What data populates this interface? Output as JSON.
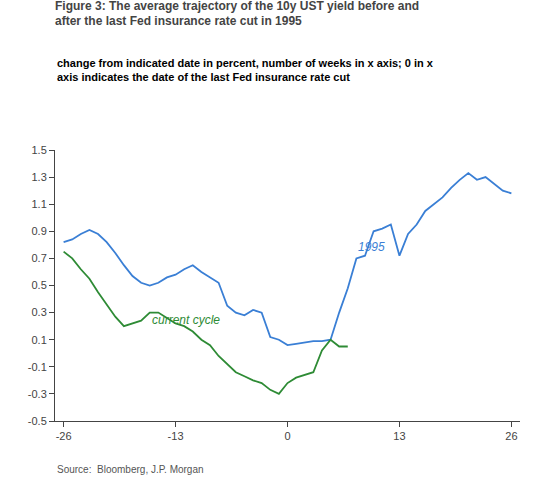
{
  "chart_data": {
    "type": "line",
    "title": "Figure 3: The average trajectory of the 10y UST yield before and\nafter the last Fed insurance rate cut in 1995",
    "subtitle": "change from indicated date in percent, number of weeks in x axis; 0 in x\naxis indicates the date of the last Fed insurance rate cut",
    "source": "Source:  Bloomberg, J.P. Morgan",
    "series": [
      {
        "color": "#3a7fd5",
        "x": [
          -26,
          -25,
          -24,
          -23,
          -22,
          -21,
          -20,
          -19,
          -18,
          -17,
          -16,
          -15,
          -14,
          -13,
          -12,
          -11,
          -10,
          -9,
          -8,
          -7,
          -6,
          -5,
          -4,
          -3,
          -2,
          -1,
          0,
          1,
          2,
          3,
          4,
          5,
          6,
          7,
          8,
          9,
          10,
          11,
          12,
          13,
          14,
          15,
          16,
          17,
          18,
          19,
          20,
          21,
          22,
          23,
          24,
          25,
          26
        ],
        "values": [
          0.82,
          0.84,
          0.88,
          0.91,
          0.88,
          0.82,
          0.74,
          0.65,
          0.57,
          0.52,
          0.5,
          0.52,
          0.56,
          0.58,
          0.62,
          0.65,
          0.6,
          0.56,
          0.52,
          0.35,
          0.3,
          0.28,
          0.32,
          0.3,
          0.12,
          0.1,
          0.06,
          0.07,
          0.08,
          0.09,
          0.09,
          0.1,
          0.3,
          0.48,
          0.7,
          0.72,
          0.9,
          0.92,
          0.95,
          0.72,
          0.88,
          0.95,
          1.05,
          1.1,
          1.15,
          1.22,
          1.28,
          1.33,
          1.28,
          1.3,
          1.25,
          1.2,
          1.18
        ]
      },
      {
        "color": "#2e8b35",
        "x": [
          -26,
          -25,
          -24,
          -23,
          -22,
          -21,
          -20,
          -19,
          -18,
          -17,
          -16,
          -15,
          -14,
          -13,
          -12,
          -11,
          -10,
          -9,
          -8,
          -7,
          -6,
          -5,
          -4,
          -3,
          -2,
          -1,
          0,
          1,
          2,
          3,
          4,
          5,
          6,
          7
        ],
        "values": [
          0.75,
          0.7,
          0.62,
          0.55,
          0.45,
          0.36,
          0.27,
          0.2,
          0.22,
          0.24,
          0.3,
          0.3,
          0.26,
          0.22,
          0.2,
          0.16,
          0.1,
          0.06,
          -0.02,
          -0.08,
          -0.14,
          -0.17,
          -0.2,
          -0.22,
          -0.27,
          -0.3,
          -0.22,
          -0.18,
          -0.16,
          -0.14,
          0.02,
          0.1,
          0.05,
          0.05
        ]
      }
    ],
    "annotations": [
      {
        "text": "1995",
        "x": 8,
        "y": 0.72,
        "color": "#3a7fd5"
      },
      {
        "text": "current cycle",
        "x": -16,
        "y": 0.18,
        "color": "#2e8b35"
      }
    ],
    "xlim": [
      -27,
      27
    ],
    "ylim": [
      -0.5,
      1.5
    ],
    "xticks": [
      -26,
      -13,
      0,
      13,
      26
    ],
    "yticks": [
      -0.5,
      -0.3,
      -0.1,
      0.1,
      0.3,
      0.5,
      0.7,
      0.9,
      1.1,
      1.3,
      1.5
    ],
    "grid": false
  }
}
